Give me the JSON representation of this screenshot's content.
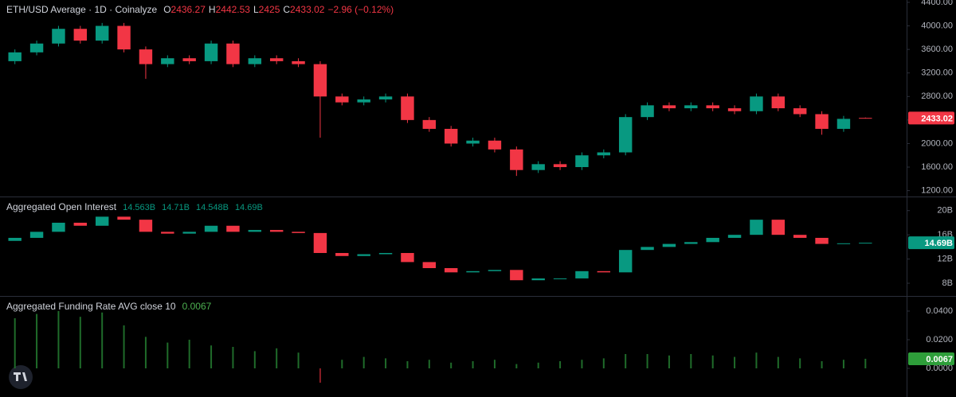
{
  "chart_data": [
    {
      "type": "candlestick",
      "title": "ETH/USD Average · 1D · Coinalyze",
      "ohlc_legend": [
        {
          "label": "O",
          "value": 2436.27
        },
        {
          "label": "H",
          "value": 2442.53
        },
        {
          "label": "L",
          "value": 2425.0
        },
        {
          "label": "C",
          "value": 2433.02
        }
      ],
      "change": "−2.96 (−0.12%)",
      "open": [
        3400,
        3550,
        3700,
        3950,
        3750,
        4000,
        3600,
        3350,
        3450,
        3400,
        3700,
        3350,
        3450,
        3400,
        3350,
        2800,
        2700,
        2750,
        2800,
        2400,
        2250,
        2000,
        2050,
        1900,
        1550,
        1650,
        1600,
        1800,
        1850,
        2450,
        2650,
        2600,
        2650,
        2600,
        2550,
        2800,
        2600,
        2500,
        2250,
        2436.27
      ],
      "high": [
        3600,
        3750,
        4000,
        4000,
        4050,
        4050,
        3650,
        3500,
        3500,
        3750,
        3750,
        3500,
        3500,
        3450,
        3400,
        2850,
        2800,
        2850,
        2850,
        2450,
        2300,
        2100,
        2100,
        1950,
        1700,
        1700,
        1850,
        1900,
        2500,
        2700,
        2700,
        2700,
        2700,
        2650,
        2850,
        2850,
        2650,
        2550,
        2470,
        2442.53
      ],
      "low": [
        3350,
        3500,
        3650,
        3700,
        3700,
        3550,
        3100,
        3300,
        3350,
        3350,
        3300,
        3300,
        3350,
        3300,
        2100,
        2650,
        2650,
        2700,
        2350,
        2200,
        1950,
        1950,
        1850,
        1450,
        1500,
        1550,
        1550,
        1750,
        1800,
        2400,
        2550,
        2550,
        2550,
        2500,
        2500,
        2550,
        2450,
        2150,
        2200,
        2425
      ],
      "close": [
        3550,
        3700,
        3950,
        3750,
        4000,
        3600,
        3350,
        3450,
        3400,
        3700,
        3350,
        3450,
        3400,
        3350,
        2800,
        2700,
        2750,
        2800,
        2400,
        2250,
        2000,
        2050,
        1900,
        1550,
        1650,
        1600,
        1800,
        1850,
        2450,
        2650,
        2600,
        2650,
        2600,
        2550,
        2800,
        2600,
        2500,
        2250,
        2420,
        2433.02
      ],
      "up_color": "#089981",
      "down_color": "#f23645",
      "ylim": [
        1100,
        4440
      ],
      "yticks": [
        {
          "value": 1200,
          "label": "1200.00"
        },
        {
          "value": 1600,
          "label": "1600.00"
        },
        {
          "value": 2000,
          "label": "2000.00"
        },
        {
          "value": 2400,
          "label": "2400.00"
        },
        {
          "value": 2800,
          "label": "2800.00"
        },
        {
          "value": 3200,
          "label": "3200.00"
        },
        {
          "value": 3600,
          "label": "3600.00"
        },
        {
          "value": 4000,
          "label": "4000.00"
        },
        {
          "value": 4400,
          "label": "4400.00"
        }
      ],
      "last_value": 2433.02,
      "last_color": "#f23645"
    },
    {
      "type": "candlestick",
      "title": "Aggregated Open Interest",
      "legend_values": [
        "14.563B",
        "14.71B",
        "14.548B",
        "14.69B"
      ],
      "open": [
        15,
        15.5,
        16.5,
        18,
        17.5,
        19,
        18.5,
        16.5,
        16.2,
        16.5,
        17.5,
        16.5,
        16.8,
        16.5,
        16.3,
        13,
        12.5,
        12.8,
        13,
        11.5,
        10.5,
        9.8,
        10,
        10.2,
        8.5,
        8.8,
        8.8,
        10,
        9.8,
        13.5,
        14,
        14.5,
        14.8,
        15.5,
        16,
        18.5,
        16,
        15.5,
        14.5,
        14.563
      ],
      "close": [
        15.5,
        16.5,
        18,
        17.5,
        19,
        18.5,
        16.5,
        16.2,
        16.5,
        17.5,
        16.5,
        16.8,
        16.5,
        16.3,
        13,
        12.5,
        12.8,
        13,
        11.5,
        10.5,
        9.8,
        10,
        10.2,
        8.5,
        8.8,
        8.8,
        10,
        9.8,
        13.5,
        14,
        14.5,
        14.8,
        15.5,
        16,
        18.5,
        16,
        15.5,
        14.5,
        14.6,
        14.69
      ],
      "up_color": "#089981",
      "down_color": "#f23645",
      "ylim": [
        5.9,
        22.2
      ],
      "yticks": [
        {
          "value": 8,
          "label": "8B"
        },
        {
          "value": 12,
          "label": "12B"
        },
        {
          "value": 16,
          "label": "16B"
        },
        {
          "value": 20,
          "label": "20B"
        }
      ],
      "last_value": 14.69,
      "last_value_label": "14.69B",
      "last_color": "#089981"
    },
    {
      "type": "bar",
      "title": "Aggregated Funding Rate AVG close 10",
      "legend_value": "0.0067",
      "values": [
        0.035,
        0.038,
        0.04,
        0.036,
        0.039,
        0.03,
        0.022,
        0.018,
        0.02,
        0.016,
        0.015,
        0.012,
        0.014,
        0.011,
        -0.01,
        0.006,
        0.008,
        0.007,
        0.005,
        0.006,
        0.004,
        0.005,
        0.006,
        0.003,
        0.004,
        0.005,
        0.006,
        0.007,
        0.01,
        0.01,
        0.009,
        0.01,
        0.009,
        0.008,
        0.011,
        0.008,
        0.007,
        0.005,
        0.006,
        0.0067
      ],
      "color": "#1f6b2a",
      "negative_color": "#8b1d25",
      "ylim": [
        -0.02,
        0.05
      ],
      "yticks": [
        {
          "value": 0,
          "label": "0.0000"
        },
        {
          "value": 0.02,
          "label": "0.0200"
        },
        {
          "value": 0.04,
          "label": "0.0400"
        }
      ],
      "last_value": 0.0067,
      "last_color": "#2e9e3a"
    }
  ]
}
